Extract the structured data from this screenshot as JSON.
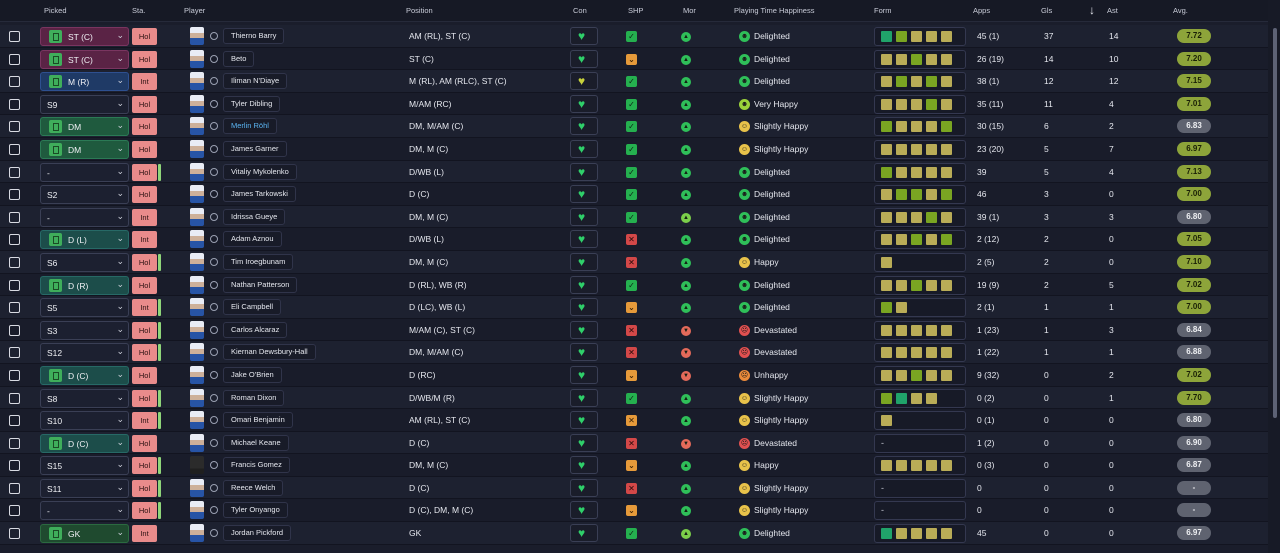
{
  "header": {
    "picked": "Picked",
    "sta": "Sta.",
    "player": "Player",
    "position": "Position",
    "con": "Con",
    "shp": "SHP",
    "mor": "Mor",
    "happiness": "Playing Time Happiness",
    "form": "Form",
    "apps": "Apps",
    "gls": "Gls",
    "ast": "Ast",
    "avg": "Avg."
  },
  "colors": {
    "delighted": "#2fbf59",
    "very_happy": "#9ad13a",
    "happy": "#e8c24a",
    "slightly_happy": "#e8c24a",
    "unhappy": "#e98a3a",
    "devastated": "#e05050",
    "form_bright": "#20a36a",
    "form_green": "#7aa522",
    "form_tan": "#b9ac57",
    "avg_good": "#8da43a",
    "avg_normal": "#5f6370"
  },
  "rows": [
    {
      "picked": "ST (C)",
      "pbg": "st",
      "picon": true,
      "sta": "Hol",
      "bar": false,
      "name": "Thierno Barry",
      "link": false,
      "position": "AM (RL), ST (C)",
      "con": "green",
      "shp": "ok",
      "mor": "up",
      "happy": "Delighted",
      "htype": "delighted",
      "form": [
        "b",
        "g",
        "t",
        "t",
        "t"
      ],
      "apps": "45 (1)",
      "gls": "37",
      "ast": "14",
      "avg": "7.72",
      "avgc": "good"
    },
    {
      "picked": "ST (C)",
      "pbg": "st",
      "picon": true,
      "sta": "Hol",
      "bar": false,
      "name": "Beto",
      "link": false,
      "position": "ST (C)",
      "con": "green",
      "shp": "mid",
      "mor": "up",
      "happy": "Delighted",
      "htype": "delighted",
      "form": [
        "t",
        "t",
        "g",
        "t",
        "t"
      ],
      "apps": "26 (19)",
      "gls": "14",
      "ast": "10",
      "avg": "7.20",
      "avgc": "good"
    },
    {
      "picked": "M (R)",
      "pbg": "mr",
      "picon": true,
      "sta": "Int",
      "bar": false,
      "name": "Iliman N'Diaye",
      "link": false,
      "position": "M (RL), AM (RLC), ST (C)",
      "con": "yellow",
      "shp": "ok",
      "mor": "up",
      "happy": "Delighted",
      "htype": "delighted",
      "form": [
        "t",
        "g",
        "t",
        "g",
        "t"
      ],
      "apps": "38 (1)",
      "gls": "12",
      "ast": "12",
      "avg": "7.15",
      "avgc": "good"
    },
    {
      "picked": "S9",
      "pbg": "",
      "picon": false,
      "sta": "Hol",
      "bar": false,
      "name": "Tyler Dibling",
      "link": false,
      "position": "M/AM (RC)",
      "con": "green",
      "shp": "ok",
      "mor": "up",
      "happy": "Very Happy",
      "htype": "veryhappy",
      "form": [
        "t",
        "t",
        "t",
        "g",
        "t"
      ],
      "apps": "35 (11)",
      "gls": "11",
      "ast": "4",
      "avg": "7.01",
      "avgc": "good"
    },
    {
      "picked": "DM",
      "pbg": "dm",
      "picon": true,
      "sta": "Hol",
      "bar": false,
      "name": "Merlin Röhl",
      "link": true,
      "position": "DM, M/AM (C)",
      "con": "green",
      "shp": "ok",
      "mor": "up",
      "happy": "Slightly Happy",
      "htype": "slightly",
      "form": [
        "g",
        "t",
        "t",
        "t",
        "g"
      ],
      "apps": "30 (15)",
      "gls": "6",
      "ast": "2",
      "avg": "6.83",
      "avgc": "norm"
    },
    {
      "picked": "DM",
      "pbg": "dm",
      "picon": true,
      "sta": "Hol",
      "bar": false,
      "name": "James Garner",
      "link": false,
      "position": "DM, M (C)",
      "con": "green",
      "shp": "ok",
      "mor": "up",
      "happy": "Slightly Happy",
      "htype": "slightly",
      "form": [
        "t",
        "t",
        "t",
        "t",
        "t"
      ],
      "apps": "23 (20)",
      "gls": "5",
      "ast": "7",
      "avg": "6.97",
      "avgc": "good"
    },
    {
      "picked": "-",
      "pbg": "",
      "picon": false,
      "sta": "Hol",
      "bar": true,
      "name": "Vitaliy Mykolenko",
      "link": false,
      "position": "D/WB (L)",
      "con": "green",
      "shp": "ok",
      "mor": "up",
      "happy": "Delighted",
      "htype": "delighted",
      "form": [
        "g",
        "t",
        "t",
        "t",
        "t"
      ],
      "apps": "39",
      "gls": "5",
      "ast": "4",
      "avg": "7.13",
      "avgc": "good"
    },
    {
      "picked": "S2",
      "pbg": "",
      "picon": false,
      "sta": "Hol",
      "bar": false,
      "name": "James Tarkowski",
      "link": false,
      "position": "D (C)",
      "con": "green",
      "shp": "ok",
      "mor": "up",
      "happy": "Delighted",
      "htype": "delighted",
      "form": [
        "t",
        "g",
        "g",
        "t",
        "g"
      ],
      "apps": "46",
      "gls": "3",
      "ast": "0",
      "avg": "7.00",
      "avgc": "good"
    },
    {
      "picked": "-",
      "pbg": "",
      "picon": false,
      "sta": "Int",
      "bar": false,
      "name": "Idrissa Gueye",
      "link": false,
      "position": "DM, M (C)",
      "con": "green",
      "shp": "ok",
      "mor": "upr",
      "happy": "Delighted",
      "htype": "delighted",
      "form": [
        "t",
        "t",
        "t",
        "g",
        "t"
      ],
      "apps": "39 (1)",
      "gls": "3",
      "ast": "3",
      "avg": "6.80",
      "avgc": "norm"
    },
    {
      "picked": "D (L)",
      "pbg": "d",
      "picon": true,
      "sta": "Int",
      "bar": false,
      "name": "Adam Aznou",
      "link": false,
      "position": "D/WB (L)",
      "con": "green",
      "shp": "bad",
      "mor": "up",
      "happy": "Delighted",
      "htype": "delighted",
      "form": [
        "t",
        "t",
        "g",
        "t",
        "g"
      ],
      "apps": "2 (12)",
      "gls": "2",
      "ast": "0",
      "avg": "7.05",
      "avgc": "good"
    },
    {
      "picked": "S6",
      "pbg": "",
      "picon": false,
      "sta": "Hol",
      "bar": true,
      "name": "Tim Iroegbunam",
      "link": false,
      "position": "DM, M (C)",
      "con": "green",
      "shp": "bad",
      "mor": "up",
      "happy": "Happy",
      "htype": "happy",
      "form": [
        "t"
      ],
      "apps": "2 (5)",
      "gls": "2",
      "ast": "0",
      "avg": "7.10",
      "avgc": "good"
    },
    {
      "picked": "D (R)",
      "pbg": "d",
      "picon": true,
      "sta": "Hol",
      "bar": false,
      "name": "Nathan Patterson",
      "link": false,
      "position": "D (RL), WB (R)",
      "con": "green",
      "shp": "ok",
      "mor": "up",
      "happy": "Delighted",
      "htype": "delighted",
      "form": [
        "t",
        "t",
        "g",
        "t",
        "t"
      ],
      "apps": "19 (9)",
      "gls": "2",
      "ast": "5",
      "avg": "7.02",
      "avgc": "good"
    },
    {
      "picked": "S5",
      "pbg": "",
      "picon": false,
      "sta": "Int",
      "bar": true,
      "name": "Eli Campbell",
      "link": false,
      "position": "D (LC), WB (L)",
      "con": "green",
      "shp": "mid",
      "mor": "up",
      "happy": "Delighted",
      "htype": "delighted",
      "form": [
        "g",
        "t"
      ],
      "apps": "2 (1)",
      "gls": "1",
      "ast": "1",
      "avg": "7.00",
      "avgc": "good"
    },
    {
      "picked": "S3",
      "pbg": "",
      "picon": false,
      "sta": "Hol",
      "bar": true,
      "name": "Carlos Alcaraz",
      "link": false,
      "position": "M/AM (C), ST (C)",
      "con": "green",
      "shp": "bad",
      "mor": "down",
      "happy": "Devastated",
      "htype": "devastated",
      "form": [
        "t",
        "t",
        "t",
        "t",
        "t"
      ],
      "apps": "1 (23)",
      "gls": "1",
      "ast": "3",
      "avg": "6.84",
      "avgc": "norm"
    },
    {
      "picked": "S12",
      "pbg": "",
      "picon": false,
      "sta": "Hol",
      "bar": true,
      "name": "Kiernan Dewsbury-Hall",
      "link": false,
      "position": "DM, M/AM (C)",
      "con": "green",
      "shp": "bad",
      "mor": "down",
      "happy": "Devastated",
      "htype": "devastated",
      "form": [
        "t",
        "t",
        "t",
        "t",
        "t"
      ],
      "apps": "1 (22)",
      "gls": "1",
      "ast": "1",
      "avg": "6.88",
      "avgc": "norm"
    },
    {
      "picked": "D (C)",
      "pbg": "d",
      "picon": true,
      "sta": "Hol",
      "bar": false,
      "name": "Jake O'Brien",
      "link": false,
      "position": "D (RC)",
      "con": "green",
      "shp": "mid",
      "mor": "down",
      "happy": "Unhappy",
      "htype": "unhappy",
      "form": [
        "t",
        "t",
        "g",
        "t",
        "t"
      ],
      "apps": "9 (32)",
      "gls": "0",
      "ast": "2",
      "avg": "7.02",
      "avgc": "good"
    },
    {
      "picked": "S8",
      "pbg": "",
      "picon": false,
      "sta": "Hol",
      "bar": true,
      "name": "Roman Dixon",
      "link": false,
      "position": "D/WB/M (R)",
      "con": "green",
      "shp": "ok",
      "mor": "up",
      "happy": "Slightly Happy",
      "htype": "slightly",
      "form": [
        "g",
        "b",
        "t",
        "t"
      ],
      "apps": "0 (2)",
      "gls": "0",
      "ast": "1",
      "avg": "7.70",
      "avgc": "good"
    },
    {
      "picked": "S10",
      "pbg": "",
      "picon": false,
      "sta": "Int",
      "bar": true,
      "name": "Omari Benjamin",
      "link": false,
      "position": "AM (RL), ST (C)",
      "con": "green",
      "shp": "midx",
      "mor": "up",
      "happy": "Slightly Happy",
      "htype": "slightly",
      "form": [
        "t"
      ],
      "apps": "0 (1)",
      "gls": "0",
      "ast": "0",
      "avg": "6.80",
      "avgc": "norm"
    },
    {
      "picked": "D (C)",
      "pbg": "d",
      "picon": true,
      "sta": "Hol",
      "bar": false,
      "name": "Michael Keane",
      "link": false,
      "position": "D (C)",
      "con": "green",
      "shp": "bad",
      "mor": "down",
      "happy": "Devastated",
      "htype": "devastated",
      "form": [],
      "apps": "1 (2)",
      "gls": "0",
      "ast": "0",
      "avg": "6.90",
      "avgc": "norm"
    },
    {
      "picked": "S15",
      "pbg": "",
      "picon": false,
      "sta": "Hol",
      "bar": true,
      "name": "Francis Gomez",
      "link": false,
      "position": "DM, M (C)",
      "con": "green",
      "shp": "mid",
      "mor": "up",
      "happy": "Happy",
      "htype": "happy",
      "form": [
        "t",
        "t",
        "t",
        "t",
        "t"
      ],
      "apps": "0 (3)",
      "gls": "0",
      "ast": "0",
      "avg": "6.87",
      "avgc": "norm",
      "darkface": true
    },
    {
      "picked": "S11",
      "pbg": "",
      "picon": false,
      "sta": "Hol",
      "bar": true,
      "name": "Reece Welch",
      "link": false,
      "position": "D (C)",
      "con": "green",
      "shp": "bad",
      "mor": "up",
      "happy": "Slightly Happy",
      "htype": "slightly",
      "form": [],
      "apps": "0",
      "gls": "0",
      "ast": "0",
      "avg": "-",
      "avgc": "norm"
    },
    {
      "picked": "-",
      "pbg": "",
      "picon": false,
      "sta": "Hol",
      "bar": true,
      "name": "Tyler Onyango",
      "link": false,
      "position": "D (C), DM, M (C)",
      "con": "green",
      "shp": "mid",
      "mor": "up",
      "happy": "Slightly Happy",
      "htype": "slightly",
      "form": [],
      "apps": "0",
      "gls": "0",
      "ast": "0",
      "avg": "-",
      "avgc": "norm"
    },
    {
      "picked": "GK",
      "pbg": "gk",
      "picon": true,
      "sta": "Int",
      "bar": false,
      "name": "Jordan Pickford",
      "link": false,
      "position": "GK",
      "con": "green",
      "shp": "ok",
      "mor": "upr",
      "happy": "Delighted",
      "htype": "delighted",
      "form": [
        "b",
        "t",
        "t",
        "t",
        "t"
      ],
      "apps": "45",
      "gls": "0",
      "ast": "0",
      "avg": "6.97",
      "avgc": "norm"
    }
  ]
}
